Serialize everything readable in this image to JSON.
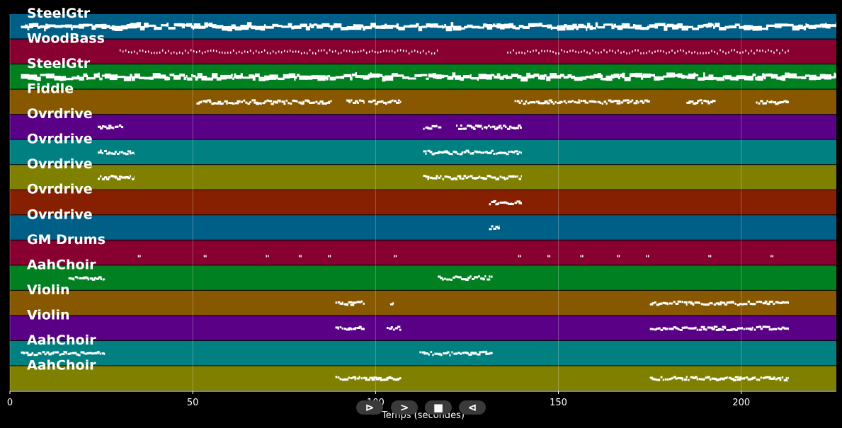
{
  "chart_data": {
    "type": "piano-roll",
    "xlabel": "Temps (secondes)",
    "xlim": [
      0,
      226
    ],
    "xticks": [
      0,
      50,
      100,
      150,
      200
    ],
    "grid": true,
    "tracks": [
      {
        "name": "SteelGtr",
        "color": "#005f87",
        "density": "dense",
        "segments": [
          [
            3,
            226
          ]
        ]
      },
      {
        "name": "WoodBass",
        "color": "#870030",
        "density": "sparse",
        "segments": [
          [
            30,
            117
          ],
          [
            136,
            213
          ]
        ]
      },
      {
        "name": "SteelGtr",
        "color": "#008020",
        "density": "dense",
        "segments": [
          [
            3,
            226
          ]
        ]
      },
      {
        "name": "Fiddle",
        "color": "#875800",
        "density": "medium",
        "segments": [
          [
            51,
            88
          ],
          [
            92,
            97
          ],
          [
            98,
            107
          ],
          [
            138,
            175
          ],
          [
            185,
            193
          ],
          [
            204,
            213
          ]
        ]
      },
      {
        "name": "Ovrdrive",
        "color": "#5a0087",
        "density": "medium",
        "segments": [
          [
            24,
            31
          ],
          [
            113,
            118
          ],
          [
            122,
            140
          ]
        ]
      },
      {
        "name": "Ovrdrive",
        "color": "#008080",
        "density": "medium",
        "segments": [
          [
            24,
            34
          ],
          [
            113,
            140
          ]
        ]
      },
      {
        "name": "Ovrdrive",
        "color": "#808000",
        "density": "medium",
        "segments": [
          [
            24,
            34
          ],
          [
            113,
            140
          ]
        ]
      },
      {
        "name": "Ovrdrive",
        "color": "#872000",
        "density": "medium",
        "segments": [
          [
            131,
            140
          ]
        ]
      },
      {
        "name": "Ovrdrive",
        "color": "#005f87",
        "density": "medium",
        "segments": [
          [
            131,
            134
          ]
        ]
      },
      {
        "name": "GM Drums",
        "color": "#870030",
        "density": "hits",
        "segments": [
          [
            35,
            36
          ],
          [
            53,
            54
          ],
          [
            70,
            72
          ],
          [
            79,
            80
          ],
          [
            87,
            89
          ],
          [
            105,
            107
          ],
          [
            139,
            140
          ],
          [
            147,
            148
          ],
          [
            156,
            158
          ],
          [
            166,
            167
          ],
          [
            174,
            175
          ],
          [
            191,
            193
          ],
          [
            208,
            210
          ]
        ]
      },
      {
        "name": "AahChoir",
        "color": "#008020",
        "density": "medium",
        "segments": [
          [
            16,
            26
          ],
          [
            117,
            132
          ]
        ]
      },
      {
        "name": "Violin",
        "color": "#875800",
        "density": "medium",
        "segments": [
          [
            89,
            97
          ],
          [
            104,
            105
          ],
          [
            175,
            213
          ]
        ]
      },
      {
        "name": "Violin",
        "color": "#5a0087",
        "density": "medium",
        "segments": [
          [
            89,
            97
          ],
          [
            103,
            107
          ],
          [
            175,
            213
          ]
        ]
      },
      {
        "name": "AahChoir",
        "color": "#008080",
        "density": "medium",
        "segments": [
          [
            3,
            26
          ],
          [
            112,
            132
          ]
        ]
      },
      {
        "name": "AahChoir",
        "color": "#808000",
        "density": "medium",
        "segments": [
          [
            89,
            107
          ],
          [
            175,
            213
          ]
        ]
      }
    ]
  },
  "controls": {
    "play_label": "⊳",
    "forward_label": ">",
    "stop_label": "■",
    "back_label": "⊲"
  }
}
